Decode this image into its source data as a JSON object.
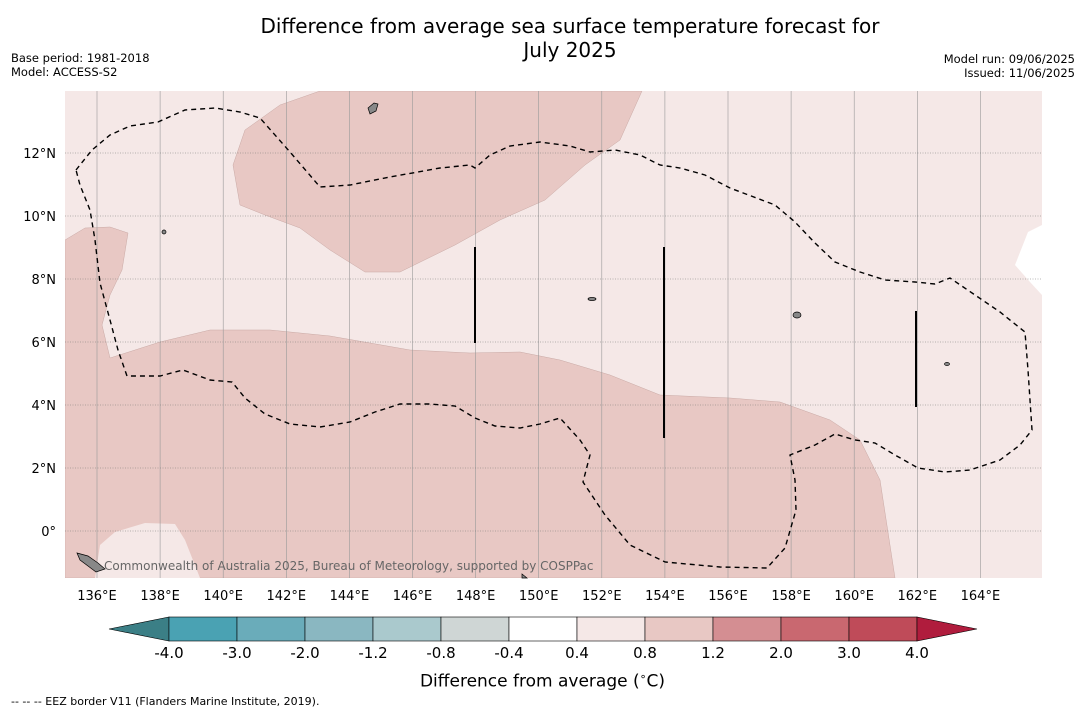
{
  "title_line1": "Difference from average sea surface temperature forecast for",
  "title_line2": "July 2025",
  "meta_left": [
    "Base period: 1981-2018",
    "Model: ACCESS-S2"
  ],
  "meta_right": [
    "Model run: 09/06/2025",
    "Issued: 11/06/2025"
  ],
  "copyright": "Commonwealth of Australia 2025, Bureau of Meteorology, supported by COSPPac",
  "lon_ticks": [
    "136°E",
    "138°E",
    "140°E",
    "142°E",
    "144°E",
    "146°E",
    "148°E",
    "150°E",
    "152°E",
    "154°E",
    "156°E",
    "158°E",
    "160°E",
    "162°E",
    "164°E"
  ],
  "lat_ticks": [
    "12°N",
    "10°N",
    "8°N",
    "6°N",
    "4°N",
    "2°N",
    "0°"
  ],
  "colorbar": {
    "title": "Difference from average ($^\\circ$C)",
    "labels": [
      "-4.0",
      "-3.0",
      "-2.0",
      "-1.2",
      "-0.8",
      "-0.4",
      "0.4",
      "0.8",
      "1.2",
      "2.0",
      "3.0",
      "4.0"
    ],
    "colors": [
      "#3b7f86",
      "#4aa2b3",
      "#6aacba",
      "#8ab7c1",
      "#aac9cd",
      "#cfd6d5",
      "#ffffff",
      "#f5e8e7",
      "#e8c8c4",
      "#d48e92",
      "#c96870",
      "#bf4b59",
      "#b01c3d"
    ]
  },
  "footnote": "--  --  -- EEZ border V11 (Flanders Marine Institute, 2019)."
}
